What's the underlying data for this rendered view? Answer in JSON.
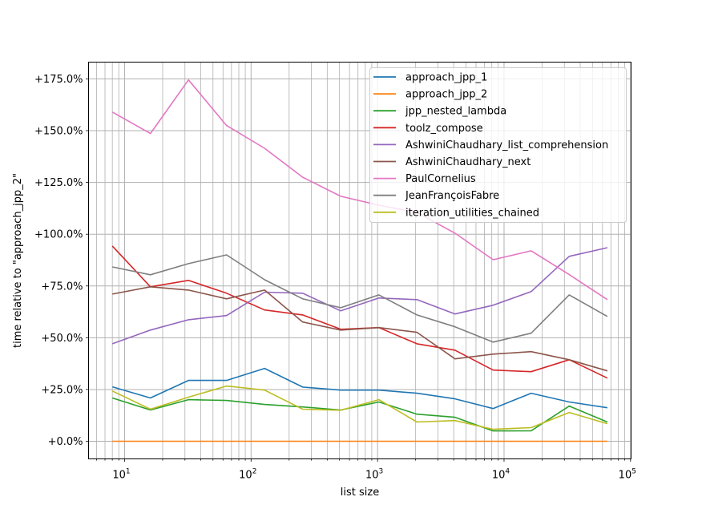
{
  "chart_data": {
    "type": "line",
    "title": "",
    "xlabel": "list size",
    "ylabel": "time relative to \"approach_jpp_2\"",
    "xscale": "log",
    "xlim": [
      5.19,
      101000
    ],
    "ylim": [
      -8.5,
      183.1
    ],
    "grid": true,
    "grid_minor_x": true,
    "legend_position": "top-right",
    "x": [
      8,
      16,
      32,
      64,
      128,
      256,
      512,
      1024,
      2048,
      4096,
      8192,
      16384,
      32768,
      65536
    ],
    "x_ticks": [
      {
        "value": 10,
        "base": "10",
        "exp": "1"
      },
      {
        "value": 100,
        "base": "10",
        "exp": "2"
      },
      {
        "value": 1000,
        "base": "10",
        "exp": "3"
      },
      {
        "value": 10000,
        "base": "10",
        "exp": "4"
      },
      {
        "value": 100000,
        "base": "10",
        "exp": "5"
      }
    ],
    "y_ticks": [
      {
        "value": 0,
        "label": "+0.0%"
      },
      {
        "value": 25,
        "label": "+25.0%"
      },
      {
        "value": 50,
        "label": "+50.0%"
      },
      {
        "value": 75,
        "label": "+75.0%"
      },
      {
        "value": 100,
        "label": "+100.0%"
      },
      {
        "value": 125,
        "label": "+125.0%"
      },
      {
        "value": 150,
        "label": "+150.0%"
      },
      {
        "value": 175,
        "label": "+175.0%"
      }
    ],
    "series": [
      {
        "name": "approach_jpp_1",
        "color": "#1f77b4",
        "values": [
          26.3,
          20.9,
          29.4,
          29.4,
          35.2,
          26.2,
          24.7,
          24.7,
          23.2,
          20.5,
          15.8,
          23.2,
          19.0,
          16.2
        ]
      },
      {
        "name": "approach_jpp_2",
        "color": "#ff7f0e",
        "values": [
          0,
          0,
          0,
          0,
          0,
          0,
          0,
          0,
          0,
          0,
          0,
          0,
          0,
          0
        ]
      },
      {
        "name": "jpp_nested_lambda",
        "color": "#2ca02c",
        "values": [
          20.9,
          15.1,
          20.1,
          19.7,
          17.8,
          16.6,
          15.1,
          19.0,
          13.1,
          11.6,
          5.0,
          5.1,
          17.0,
          9.3
        ]
      },
      {
        "name": "toolz_compose",
        "color": "#d62728",
        "values": [
          94.3,
          74.6,
          77.7,
          71.5,
          63.4,
          61.0,
          54.1,
          54.9,
          47.1,
          44.0,
          34.4,
          33.6,
          39.4,
          30.5
        ]
      },
      {
        "name": "AshwiniChaudhary_list_comprehension",
        "color": "#9467bd",
        "values": [
          47.1,
          53.7,
          58.7,
          60.7,
          72.0,
          71.5,
          63.0,
          69.2,
          68.4,
          61.5,
          65.7,
          72.3,
          89.3,
          93.5
        ]
      },
      {
        "name": "AshwiniChaudhary_next",
        "color": "#8c564b",
        "values": [
          71.1,
          74.6,
          73.0,
          68.8,
          73.0,
          57.6,
          53.7,
          54.9,
          52.6,
          39.8,
          42.1,
          43.3,
          39.4,
          34.0
        ]
      },
      {
        "name": "PaulCornelius",
        "color": "#e377c2",
        "values": [
          159.0,
          148.6,
          174.5,
          152.5,
          141.5,
          127.5,
          118.3,
          114.0,
          110.5,
          100.5,
          87.7,
          92.0,
          80.5,
          68.4
        ]
      },
      {
        "name": "JeanFrançoisFabre",
        "color": "#7f7f7f",
        "values": [
          84.2,
          80.4,
          85.8,
          90.0,
          78.0,
          68.8,
          64.5,
          70.7,
          61.0,
          55.3,
          47.9,
          52.2,
          70.7,
          60.3
        ]
      },
      {
        "name": "iteration_utilities_chained",
        "color": "#bcbd22",
        "values": [
          24.3,
          15.5,
          21.3,
          26.7,
          24.7,
          15.5,
          15.0,
          20.1,
          9.3,
          10.0,
          5.8,
          6.6,
          13.9,
          8.5
        ]
      }
    ]
  }
}
